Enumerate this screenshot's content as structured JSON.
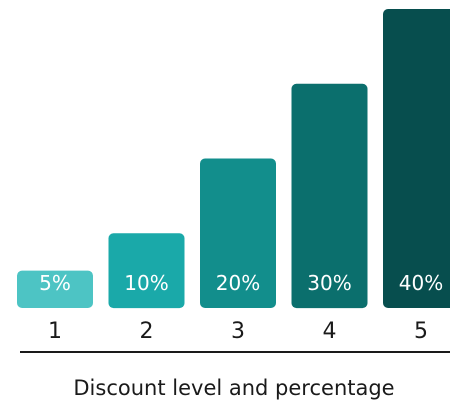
{
  "chart_data": {
    "type": "bar",
    "categories": [
      "1",
      "2",
      "3",
      "4",
      "5"
    ],
    "values": [
      5,
      10,
      20,
      30,
      40
    ],
    "value_labels": [
      "5%",
      "10%",
      "20%",
      "30%",
      "40%"
    ],
    "xlabel": "Discount level and percentage",
    "ylabel": "",
    "ylim": [
      0,
      40
    ],
    "grid": false,
    "legend": "none",
    "bar_colors": [
      "#4dc4c4",
      "#1aa9a9",
      "#128e8c",
      "#0b6f6d",
      "#074e4e"
    ],
    "axis_line_color": "#1a1a1a"
  }
}
